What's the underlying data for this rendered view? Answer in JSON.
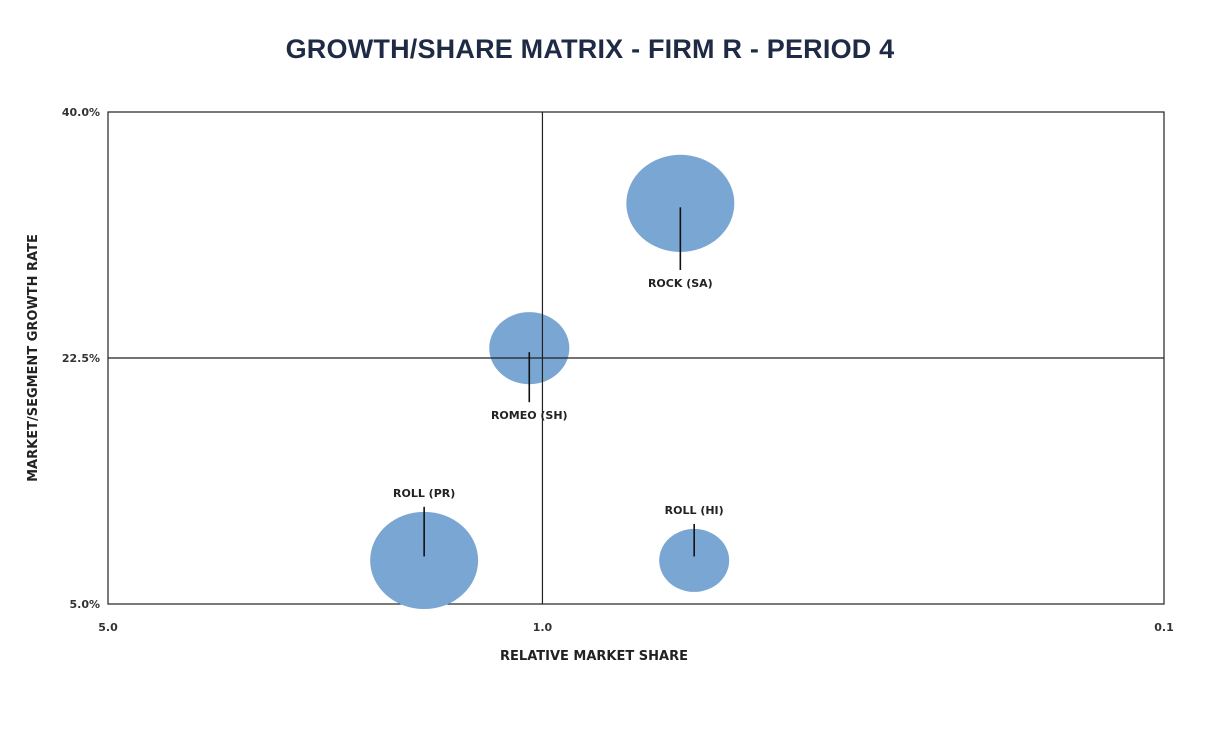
{
  "chart_data": {
    "type": "scatter",
    "title": "GROWTH/SHARE MATRIX - FIRM R - PERIOD 4",
    "xlabel": "RELATIVE MARKET SHARE",
    "ylabel": "MARKET/SEGMENT GROWTH RATE",
    "x_scale": "log",
    "x_reversed": true,
    "xlim": [
      5.0,
      0.1
    ],
    "ylim": [
      5.0,
      40.0
    ],
    "x_ticks": [
      {
        "value": 5.0,
        "label": "5.0"
      },
      {
        "value": 1.0,
        "label": "1.0"
      },
      {
        "value": 0.1,
        "label": "0.1"
      }
    ],
    "y_ticks": [
      {
        "value": 5.0,
        "label": "5.0%"
      },
      {
        "value": 22.5,
        "label": "22.5%"
      },
      {
        "value": 40.0,
        "label": "40.0%"
      }
    ],
    "quadrant_lines": {
      "x": 1.0,
      "y": 22.5
    },
    "bubble_color": "#7aa6d3",
    "points": [
      {
        "label": "ROCK (SA)",
        "x": 0.6,
        "y": 33.5,
        "size": 1.0,
        "label_pos": "below"
      },
      {
        "label": "ROMEO (SH)",
        "x": 1.05,
        "y": 23.2,
        "size": 0.55,
        "label_pos": "below"
      },
      {
        "label": "ROLL (PR)",
        "x": 1.55,
        "y": 8.1,
        "size": 1.0,
        "label_pos": "above"
      },
      {
        "label": "ROLL (HI)",
        "x": 0.57,
        "y": 8.1,
        "size": 0.42,
        "label_pos": "above"
      }
    ]
  }
}
